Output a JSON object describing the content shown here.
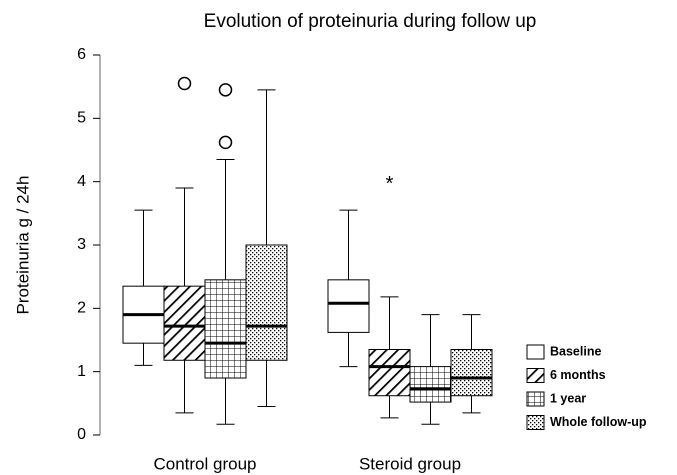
{
  "chart_data": {
    "type": "box",
    "title": "Evolution of proteinuria during follow up",
    "y_label": "Proteinuria g / 24h",
    "categories": [
      "Control group",
      "Steroid group"
    ],
    "ylim": [
      0,
      6
    ],
    "yticks": [
      0,
      1,
      2,
      3,
      4,
      5,
      6
    ],
    "legend": "bottom-right",
    "color": "#000000",
    "extreme_marker": "*",
    "series": [
      {
        "name": "Baseline",
        "pattern": "none",
        "values": [
          {
            "min": 1.1,
            "q1": 1.45,
            "median": 1.9,
            "q3": 2.35,
            "max": 3.55
          },
          {
            "min": 1.08,
            "q1": 1.62,
            "median": 2.08,
            "q3": 2.45,
            "max": 3.55
          }
        ],
        "outliers": [
          [],
          []
        ],
        "extremes": [
          [],
          []
        ]
      },
      {
        "name": "6 months",
        "pattern": "diagonal",
        "values": [
          {
            "min": 0.35,
            "q1": 1.18,
            "median": 1.72,
            "q3": 2.35,
            "max": 3.9
          },
          {
            "min": 0.27,
            "q1": 0.62,
            "median": 1.08,
            "q3": 1.35,
            "max": 2.18
          }
        ],
        "outliers": [
          [
            5.55
          ],
          []
        ],
        "extremes": [
          [],
          [
            4.0
          ]
        ]
      },
      {
        "name": "1 year",
        "pattern": "grid",
        "values": [
          {
            "min": 0.17,
            "q1": 0.9,
            "median": 1.45,
            "q3": 2.45,
            "max": 4.35
          },
          {
            "min": 0.17,
            "q1": 0.52,
            "median": 0.73,
            "q3": 1.08,
            "max": 1.9
          }
        ],
        "outliers": [
          [
            5.45,
            4.62
          ],
          []
        ],
        "extremes": [
          [],
          []
        ]
      },
      {
        "name": "Whole follow-up",
        "pattern": "dots",
        "values": [
          {
            "min": 0.45,
            "q1": 1.18,
            "median": 1.72,
            "q3": 3.0,
            "max": 5.45
          },
          {
            "min": 0.35,
            "q1": 0.62,
            "median": 0.9,
            "q3": 1.35,
            "max": 1.9
          }
        ],
        "outliers": [
          [],
          []
        ],
        "extremes": [
          [],
          []
        ]
      }
    ]
  }
}
